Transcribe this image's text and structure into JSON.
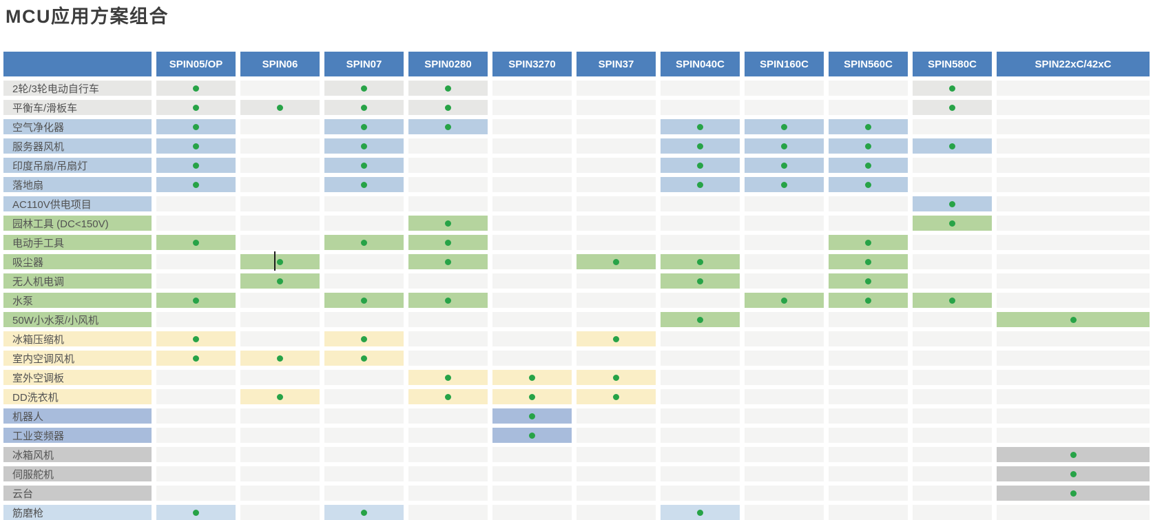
{
  "title": "MCU应用方案组合",
  "chart_data": {
    "type": "table",
    "title": "MCU应用方案组合",
    "header_color": "#4d80bc",
    "header_text_color": "#ffffff",
    "empty_cell_color": "#f4f4f3",
    "dot_color": "#27a347",
    "label_text_color": "#525252",
    "columns": [
      "SPIN05/OP",
      "SPIN06",
      "SPIN07",
      "SPIN0280",
      "SPIN3270",
      "SPIN37",
      "SPIN040C",
      "SPIN160C",
      "SPIN560C",
      "SPIN580C",
      "SPIN22xC/42xC"
    ],
    "rows": [
      {
        "label": "2轮/3轮电动自行车",
        "color": "#e7e7e5",
        "dots": [
          "SPIN05/OP",
          "SPIN07",
          "SPIN0280",
          "SPIN580C"
        ]
      },
      {
        "label": "平衡车/滑板车",
        "color": "#e7e7e5",
        "dots": [
          "SPIN05/OP",
          "SPIN06",
          "SPIN07",
          "SPIN0280",
          "SPIN580C"
        ]
      },
      {
        "label": "空气净化器",
        "color": "#b8cde3",
        "dots": [
          "SPIN05/OP",
          "SPIN07",
          "SPIN0280",
          "SPIN040C",
          "SPIN160C",
          "SPIN560C"
        ]
      },
      {
        "label": "服务器风机",
        "color": "#b8cde3",
        "dots": [
          "SPIN05/OP",
          "SPIN07",
          "SPIN040C",
          "SPIN160C",
          "SPIN560C",
          "SPIN580C"
        ]
      },
      {
        "label": "印度吊扇/吊扇灯",
        "color": "#b8cde3",
        "dots": [
          "SPIN05/OP",
          "SPIN07",
          "SPIN040C",
          "SPIN160C",
          "SPIN560C"
        ]
      },
      {
        "label": "落地扇",
        "color": "#b8cde3",
        "dots": [
          "SPIN05/OP",
          "SPIN07",
          "SPIN040C",
          "SPIN160C",
          "SPIN560C"
        ]
      },
      {
        "label": "AC110V供电项目",
        "color": "#b8cde3",
        "dots": [
          "SPIN580C"
        ]
      },
      {
        "label": "园林工具 (DC<150V)",
        "color": "#b5d49e",
        "dots": [
          "SPIN0280",
          "SPIN580C"
        ]
      },
      {
        "label": "电动手工具",
        "color": "#b5d49e",
        "dots": [
          "SPIN05/OP",
          "SPIN07",
          "SPIN0280",
          "SPIN560C"
        ]
      },
      {
        "label": "吸尘器",
        "color": "#b5d49e",
        "dots": [
          "SPIN06",
          "SPIN0280",
          "SPIN37",
          "SPIN040C",
          "SPIN560C"
        ]
      },
      {
        "label": "无人机电调",
        "color": "#b5d49e",
        "dots": [
          "SPIN06",
          "SPIN040C",
          "SPIN560C"
        ]
      },
      {
        "label": "水泵",
        "color": "#b5d49e",
        "dots": [
          "SPIN05/OP",
          "SPIN07",
          "SPIN0280",
          "SPIN160C",
          "SPIN560C",
          "SPIN580C"
        ]
      },
      {
        "label": "50W小水泵/小风机",
        "color": "#b5d49e",
        "dots": [
          "SPIN040C",
          "SPIN22xC/42xC"
        ]
      },
      {
        "label": "冰箱压缩机",
        "color": "#faeec6",
        "dots": [
          "SPIN05/OP",
          "SPIN07",
          "SPIN37"
        ]
      },
      {
        "label": "室内空调风机",
        "color": "#faeec6",
        "dots": [
          "SPIN05/OP",
          "SPIN06",
          "SPIN07"
        ]
      },
      {
        "label": "室外空调板",
        "color": "#faeec6",
        "dots": [
          "SPIN0280",
          "SPIN3270",
          "SPIN37"
        ]
      },
      {
        "label": "DD洗衣机",
        "color": "#faeec6",
        "dots": [
          "SPIN06",
          "SPIN0280",
          "SPIN3270",
          "SPIN37"
        ]
      },
      {
        "label": "机器人",
        "color": "#a8bcdc",
        "dots": [
          "SPIN3270"
        ]
      },
      {
        "label": "工业变频器",
        "color": "#a8bcdc",
        "dots": [
          "SPIN3270"
        ]
      },
      {
        "label": "冰箱风机",
        "color": "#c9c9c9",
        "dots": [
          "SPIN22xC/42xC"
        ]
      },
      {
        "label": "伺服舵机",
        "color": "#c9c9c9",
        "dots": [
          "SPIN22xC/42xC"
        ]
      },
      {
        "label": "云台",
        "color": "#c9c9c9",
        "dots": [
          "SPIN22xC/42xC"
        ]
      },
      {
        "label": "筋磨枪",
        "color": "#ccdded",
        "dots": [
          "SPIN05/OP",
          "SPIN07",
          "SPIN040C"
        ]
      }
    ],
    "text_cursor": {
      "row": "吸尘器",
      "column": "SPIN06"
    }
  }
}
